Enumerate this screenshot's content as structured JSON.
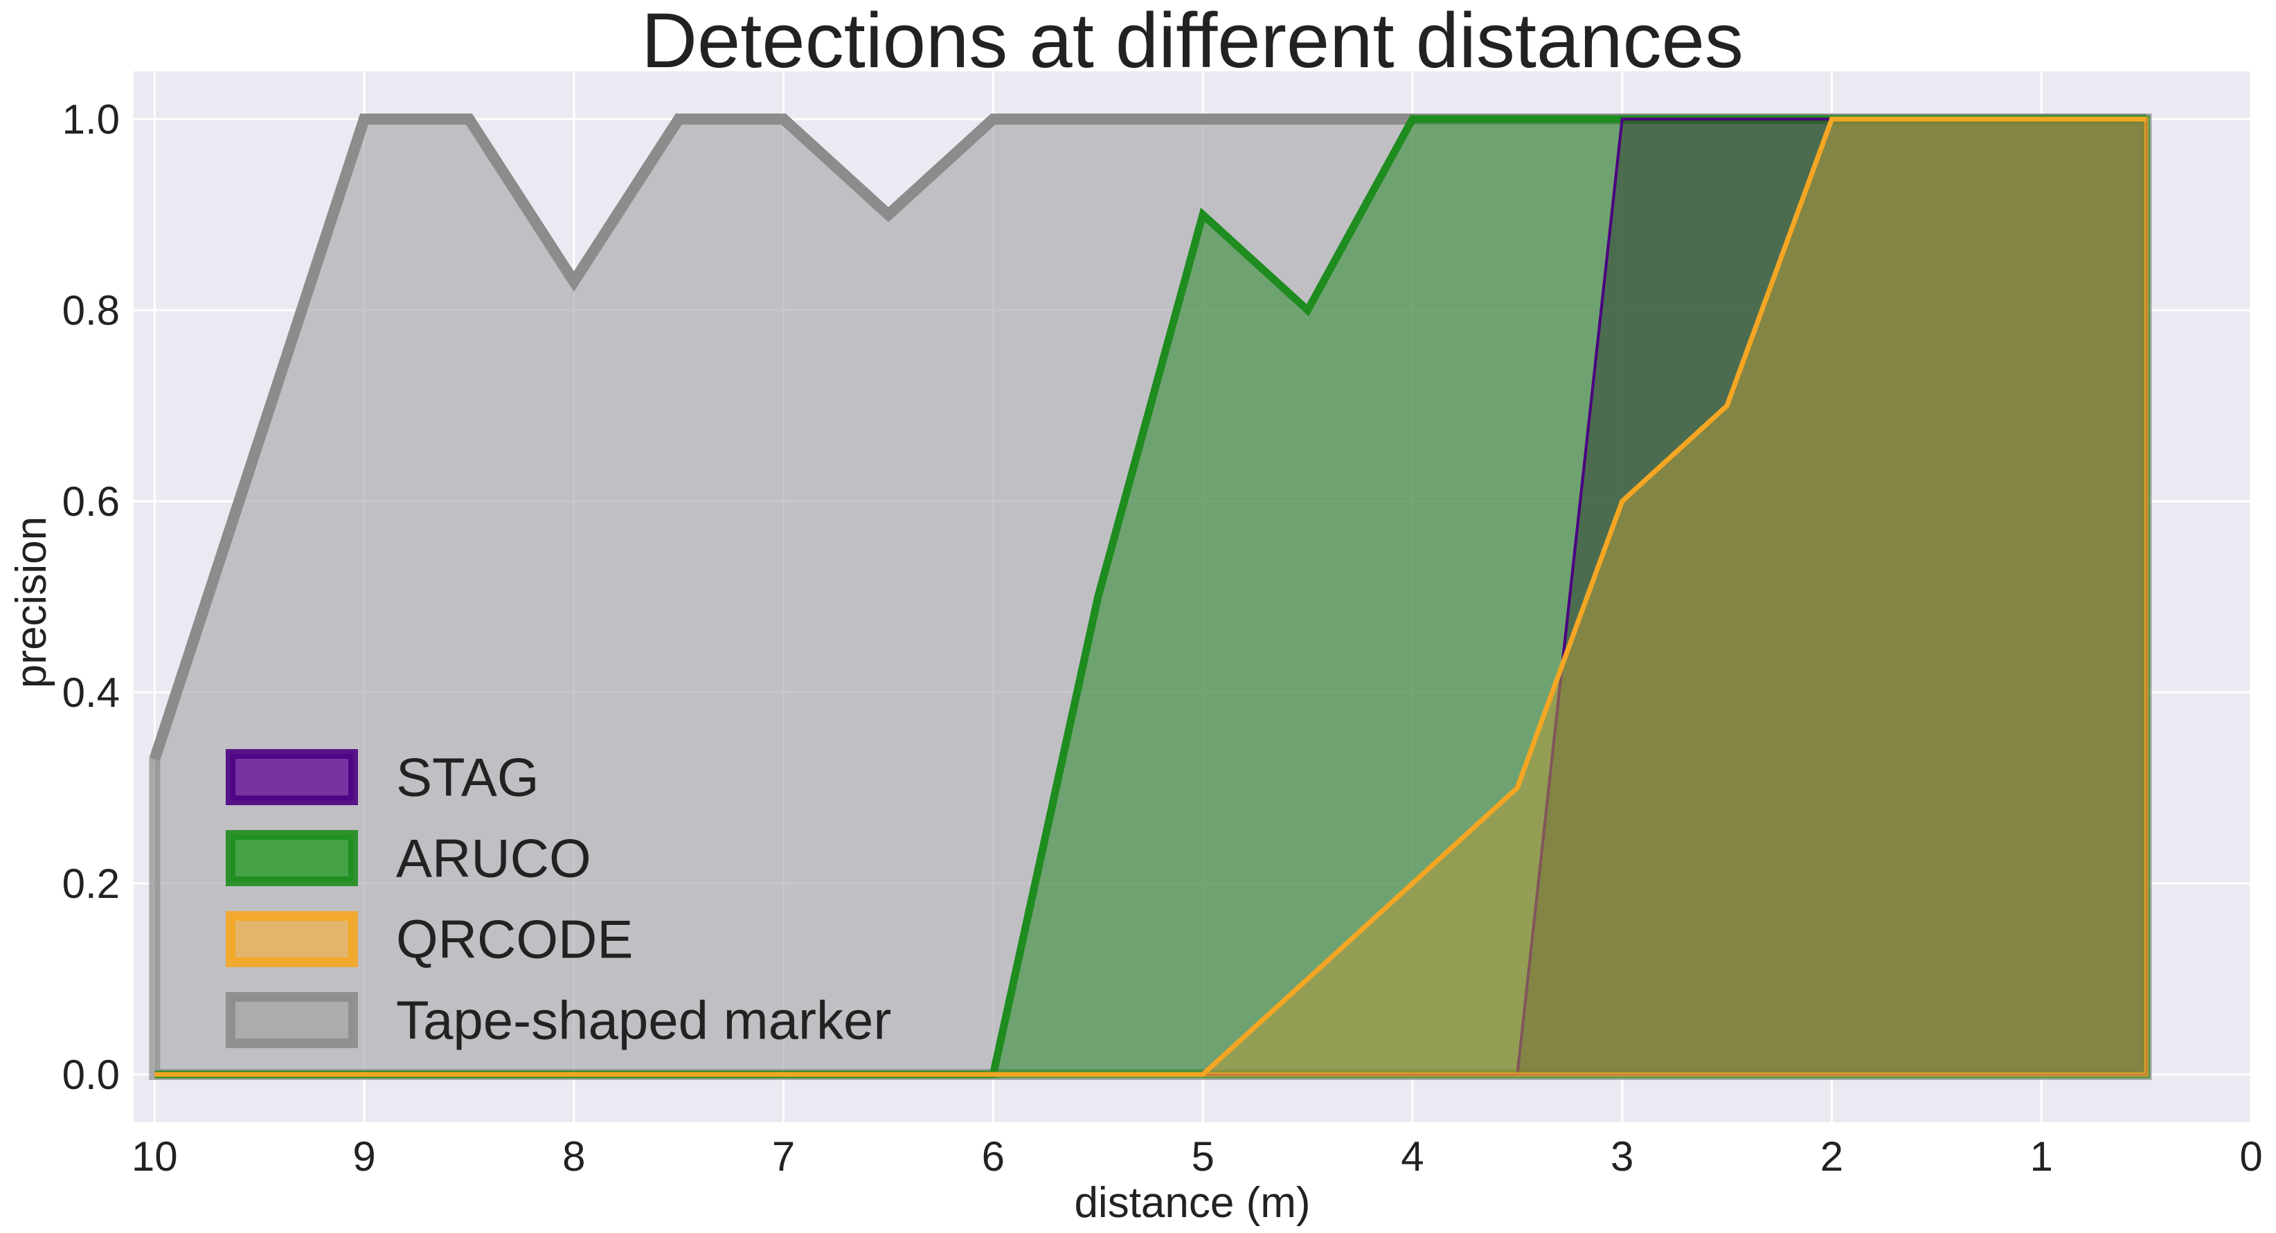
{
  "chart_data": {
    "type": "area",
    "title": "Detections at different distances",
    "xlabel": "distance (m)",
    "ylabel": "precision",
    "xlim": [
      10.1,
      0
    ],
    "ylim": [
      -0.05,
      1.05
    ],
    "x_inverted": true,
    "grid": true,
    "legend_position": "lower-left",
    "x_ticks": [
      "10",
      "9",
      "8",
      "7",
      "6",
      "5",
      "4",
      "3",
      "2",
      "1",
      "0"
    ],
    "y_ticks": [
      "0.0",
      "0.2",
      "0.4",
      "0.6",
      "0.8",
      "1.0"
    ],
    "x_tick_values": [
      10,
      9,
      8,
      7,
      6,
      5,
      4,
      3,
      2,
      1,
      0
    ],
    "y_tick_values": [
      0,
      0.2,
      0.4,
      0.6,
      0.8,
      1.0
    ],
    "colors": {
      "background": "#EAEAF2",
      "grid": "#FFFFFF"
    },
    "series": [
      {
        "name": "Tape-shaped marker",
        "color": "#8C8C8C",
        "fill": "#9A9A9E",
        "fill_opacity": 0.55,
        "line_width": 16,
        "x": [
          10,
          9,
          8.5,
          8,
          7.5,
          7,
          6.5,
          6,
          5.5,
          5,
          4.5,
          4,
          3.5,
          3,
          2.5,
          2,
          1.5,
          1,
          0.5
        ],
        "y": [
          0.33,
          1.0,
          1.0,
          0.83,
          1.0,
          1.0,
          0.9,
          1.0,
          1.0,
          1.0,
          1.0,
          1.0,
          1.0,
          1.0,
          1.0,
          1.0,
          1.0,
          1.0,
          1.0
        ]
      },
      {
        "name": "ARUCO",
        "color": "#1E8C1E",
        "fill": "#2E8B2E",
        "fill_opacity": 0.55,
        "line_width": 11,
        "x": [
          10,
          9,
          8,
          7,
          6,
          5.5,
          5,
          4.5,
          4,
          3.5,
          3,
          2.5,
          2,
          1.5,
          1,
          0.5
        ],
        "y": [
          0,
          0,
          0,
          0,
          0,
          0.5,
          0.9,
          0.8,
          1.0,
          1.0,
          1.0,
          1.0,
          1.0,
          1.0,
          1.0,
          1.0
        ]
      },
      {
        "name": "STAG",
        "color": "#4B0082",
        "fill": "#2F3F33",
        "fill_opacity": 0.55,
        "line_width": 4,
        "x": [
          10,
          9,
          8,
          7,
          6,
          5,
          4,
          3.5,
          3,
          2.5,
          2,
          1.5,
          1,
          0.5
        ],
        "y": [
          0,
          0,
          0,
          0,
          0,
          0,
          0,
          0,
          1.0,
          1.0,
          1.0,
          1.0,
          1.0,
          1.0
        ]
      },
      {
        "name": "QRCODE",
        "color": "#F5A623",
        "fill": "#B09A3C",
        "fill_opacity": 0.55,
        "line_width": 7,
        "x": [
          10,
          9,
          8,
          7,
          6,
          5,
          4.5,
          4,
          3.5,
          3,
          2.5,
          2,
          1.5,
          1,
          0.5
        ],
        "y": [
          0,
          0,
          0,
          0,
          0,
          0,
          0.1,
          0.2,
          0.3,
          0.6,
          0.7,
          1.0,
          1.0,
          1.0,
          1.0
        ]
      }
    ],
    "legend": [
      {
        "name": "STAG",
        "edge": "#4B0082",
        "face": "#6A1B9A"
      },
      {
        "name": "ARUCO",
        "edge": "#1E8C1E",
        "face": "#2E9B2E"
      },
      {
        "name": "QRCODE",
        "edge": "#F5A623",
        "face": "#E8B35A"
      },
      {
        "name": "Tape-shaped marker",
        "edge": "#8C8C8C",
        "face": "#A8A8A8"
      }
    ]
  }
}
